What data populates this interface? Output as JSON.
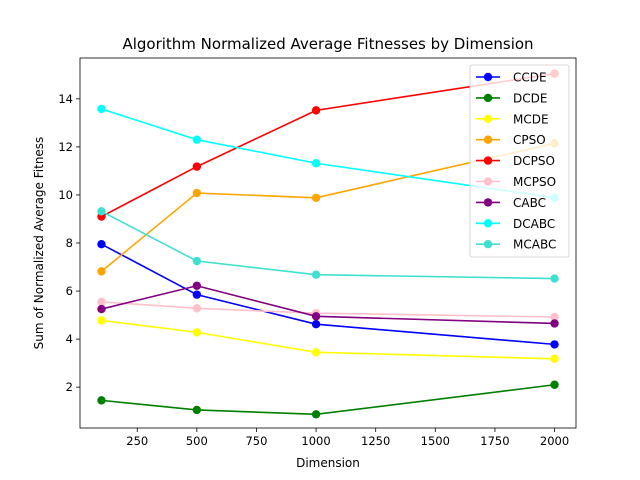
{
  "chart_data": {
    "type": "line",
    "title": "Algorithm Normalized Average Fitnesses by Dimension",
    "xlabel": "Dimension",
    "ylabel": "Sum of Normalized Average Fitness",
    "x": [
      100,
      500,
      1000,
      2000
    ],
    "xlim": [
      10,
      2090
    ],
    "ylim": [
      0.3,
      15.7
    ],
    "xticks": [
      250,
      500,
      750,
      1000,
      1250,
      1500,
      1750,
      2000
    ],
    "yticks": [
      2,
      4,
      6,
      8,
      10,
      12,
      14
    ],
    "grid": false,
    "legend_position": "top-right",
    "series": [
      {
        "name": "CCDE",
        "color": "#0000ff",
        "values": [
          7.95,
          5.85,
          4.62,
          3.78
        ]
      },
      {
        "name": "DCDE",
        "color": "#008000",
        "values": [
          1.45,
          1.05,
          0.87,
          2.1
        ]
      },
      {
        "name": "MCDE",
        "color": "#ffff00",
        "values": [
          4.78,
          4.28,
          3.45,
          3.18
        ]
      },
      {
        "name": "CPSO",
        "color": "#ffa500",
        "values": [
          6.82,
          10.08,
          9.88,
          12.15
        ]
      },
      {
        "name": "DCPSO",
        "color": "#ff0000",
        "values": [
          9.1,
          11.18,
          13.52,
          15.05
        ]
      },
      {
        "name": "MCPSO",
        "color": "#ffc0cb",
        "values": [
          5.55,
          5.28,
          5.08,
          4.92
        ]
      },
      {
        "name": "CABC",
        "color": "#800080",
        "values": [
          5.25,
          6.22,
          4.95,
          4.65
        ]
      },
      {
        "name": "DCABC",
        "color": "#00ffff",
        "values": [
          13.58,
          12.3,
          11.32,
          9.88
        ]
      },
      {
        "name": "MCABC",
        "color": "#40e0d0",
        "values": [
          9.32,
          7.25,
          6.68,
          6.52
        ]
      }
    ]
  }
}
